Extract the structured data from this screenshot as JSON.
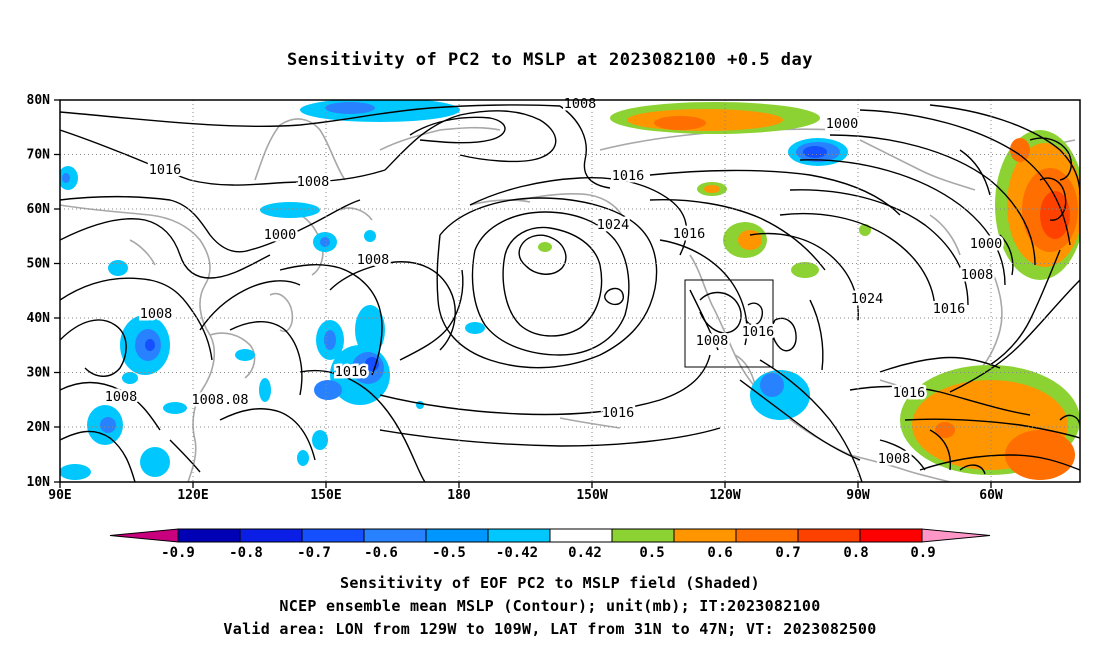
{
  "title": "Sensitivity of PC2 to MSLP at 2023082100 +0.5 day",
  "axes": {
    "lat_labels": [
      "80N",
      "70N",
      "60N",
      "50N",
      "40N",
      "30N",
      "20N",
      "10N"
    ],
    "lon_labels": [
      "90E",
      "120E",
      "150E",
      "180",
      "150W",
      "120W",
      "90W",
      "60W"
    ]
  },
  "contour_labels": [
    {
      "text": "1008"
    },
    {
      "text": "1000"
    },
    {
      "text": "1016"
    },
    {
      "text": "1008"
    },
    {
      "text": "1000"
    },
    {
      "text": "1008"
    },
    {
      "text": "1016"
    },
    {
      "text": "1024"
    },
    {
      "text": "1016"
    },
    {
      "text": "1000"
    },
    {
      "text": "1008"
    },
    {
      "text": "1024"
    },
    {
      "text": "1016"
    },
    {
      "text": "1008"
    },
    {
      "text": "1016"
    },
    {
      "text": "1008"
    },
    {
      "text": "1016"
    },
    {
      "text": "1008"
    },
    {
      "text": "1008.08"
    },
    {
      "text": "1016"
    },
    {
      "text": "1016"
    },
    {
      "text": "1008"
    }
  ],
  "colorbar": {
    "labels": [
      "-0.9",
      "-0.8",
      "-0.7",
      "-0.6",
      "-0.5",
      "-0.42",
      "0.42",
      "0.5",
      "0.6",
      "0.7",
      "0.8",
      "0.9"
    ],
    "colors": [
      "#c8007d",
      "#0000b4",
      "#0a1ee6",
      "#1450ff",
      "#2882ff",
      "#0096ff",
      "#00c8ff",
      "#ffffff",
      "#8cd232",
      "#ff9600",
      "#ff6e00",
      "#ff4100",
      "#ff0000",
      "#ff96c8"
    ]
  },
  "footer": {
    "line1": "Sensitivity of EOF PC2 to MSLP field (Shaded)",
    "line2": "NCEP ensemble mean MSLP (Contour); unit(mb); IT:2023082100",
    "line3": "Valid area: LON from 129W to 109W, LAT from 31N to 47N; VT: 2023082500"
  }
}
